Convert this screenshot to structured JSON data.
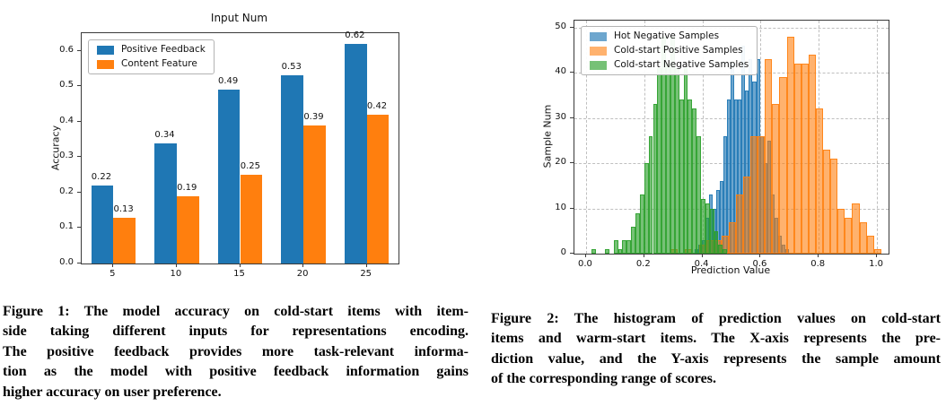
{
  "page_background": "#ffffff",
  "figure1": {
    "caption_lines": [
      "Figure 1: The model accuracy on cold-start items with item-",
      "side taking different inputs for representations encoding.",
      "The positive feedback provides more task-relevant informa-",
      "tion as the model with positive feedback information gains",
      "higher accuracy on user preference."
    ]
  },
  "figure2": {
    "caption_lines": [
      "Figure 2: The histogram of prediction values on cold-start",
      "items and warm-start items. The X-axis represents the pre-",
      "diction value, and the Y-axis represents the sample amount",
      "of the corresponding range of scores."
    ]
  },
  "chart_data": [
    {
      "id": "figure1-bar-chart",
      "type": "bar",
      "title": "Input Num",
      "xlabel": "",
      "ylabel": "Accuracy",
      "categories": [
        "5",
        "10",
        "15",
        "20",
        "25"
      ],
      "series": [
        {
          "name": "Positive Feedback",
          "color": "#1f77b4",
          "values": [
            0.22,
            0.34,
            0.49,
            0.53,
            0.62
          ]
        },
        {
          "name": "Content Feature",
          "color": "#ff7f0e",
          "values": [
            0.13,
            0.19,
            0.25,
            0.39,
            0.42
          ]
        }
      ],
      "bar_value_labels": true,
      "ylim": [
        0,
        0.65
      ],
      "yticks": [
        "0.0",
        "0.1",
        "0.2",
        "0.3",
        "0.4",
        "0.5",
        "0.6"
      ],
      "grid": false,
      "legend_position": "upper-left"
    },
    {
      "id": "figure2-histogram",
      "type": "histogram",
      "title": "",
      "xlabel": "Prediction Value",
      "ylabel": "Sample Num",
      "xlim": [
        -0.04,
        1.04
      ],
      "ylim": [
        0,
        51.5
      ],
      "xticks": [
        "0.0",
        "0.2",
        "0.4",
        "0.6",
        "0.8",
        "1.0"
      ],
      "yticks": [
        "0",
        "10",
        "20",
        "30",
        "40",
        "50"
      ],
      "grid": true,
      "grid_style": "dashed",
      "legend_position": "upper-left",
      "series": [
        {
          "name": "Hot Negative Samples",
          "color": "#1f77b4",
          "alpha": 0.65,
          "bin_width": 0.0125,
          "bins": [
            [
              0.3725,
              1
            ],
            [
              0.385,
              2
            ],
            [
              0.3975,
              3
            ],
            [
              0.41,
              8
            ],
            [
              0.4225,
              13
            ],
            [
              0.435,
              10
            ],
            [
              0.4475,
              14
            ],
            [
              0.46,
              16
            ],
            [
              0.4725,
              26
            ],
            [
              0.485,
              34
            ],
            [
              0.4975,
              42
            ],
            [
              0.51,
              34
            ],
            [
              0.5225,
              34
            ],
            [
              0.535,
              46
            ],
            [
              0.5475,
              36
            ],
            [
              0.56,
              43
            ],
            [
              0.5725,
              38
            ],
            [
              0.585,
              43
            ],
            [
              0.5975,
              26
            ],
            [
              0.61,
              20
            ],
            [
              0.6225,
              25
            ],
            [
              0.635,
              13
            ],
            [
              0.6475,
              8
            ],
            [
              0.66,
              4
            ],
            [
              0.6725,
              2
            ],
            [
              0.685,
              1
            ]
          ]
        },
        {
          "name": "Cold-start Positive Samples",
          "color": "#ff7f0e",
          "alpha": 0.6,
          "bin_width": 0.025,
          "bins": [
            [
              0.29,
              1
            ],
            [
              0.34,
              1
            ],
            [
              0.39,
              2
            ],
            [
              0.415,
              3
            ],
            [
              0.44,
              3
            ],
            [
              0.465,
              4
            ],
            [
              0.49,
              7
            ],
            [
              0.515,
              13
            ],
            [
              0.54,
              17
            ],
            [
              0.565,
              26
            ],
            [
              0.59,
              26
            ],
            [
              0.615,
              43
            ],
            [
              0.64,
              33
            ],
            [
              0.665,
              39
            ],
            [
              0.69,
              48
            ],
            [
              0.715,
              42
            ],
            [
              0.74,
              42
            ],
            [
              0.765,
              44
            ],
            [
              0.79,
              32
            ],
            [
              0.815,
              23
            ],
            [
              0.84,
              21
            ],
            [
              0.865,
              10
            ],
            [
              0.89,
              8
            ],
            [
              0.915,
              11
            ],
            [
              0.94,
              7
            ],
            [
              0.965,
              4
            ],
            [
              0.99,
              1
            ]
          ]
        },
        {
          "name": "Cold-start Negative Samples",
          "color": "#2ca02c",
          "alpha": 0.65,
          "bin_width": 0.015,
          "bins": [
            [
              0.02,
              1
            ],
            [
              0.065,
              1
            ],
            [
              0.095,
              3
            ],
            [
              0.11,
              1
            ],
            [
              0.125,
              3
            ],
            [
              0.14,
              3
            ],
            [
              0.155,
              6
            ],
            [
              0.17,
              9
            ],
            [
              0.185,
              13
            ],
            [
              0.2,
              20
            ],
            [
              0.215,
              26
            ],
            [
              0.23,
              33
            ],
            [
              0.245,
              41
            ],
            [
              0.26,
              48
            ],
            [
              0.275,
              42
            ],
            [
              0.29,
              48
            ],
            [
              0.305,
              41
            ],
            [
              0.32,
              34
            ],
            [
              0.335,
              41
            ],
            [
              0.35,
              34
            ],
            [
              0.365,
              32
            ],
            [
              0.38,
              26
            ],
            [
              0.395,
              12
            ],
            [
              0.41,
              11
            ],
            [
              0.425,
              10
            ],
            [
              0.44,
              5
            ],
            [
              0.455,
              2
            ],
            [
              0.47,
              1
            ]
          ]
        }
      ]
    }
  ]
}
